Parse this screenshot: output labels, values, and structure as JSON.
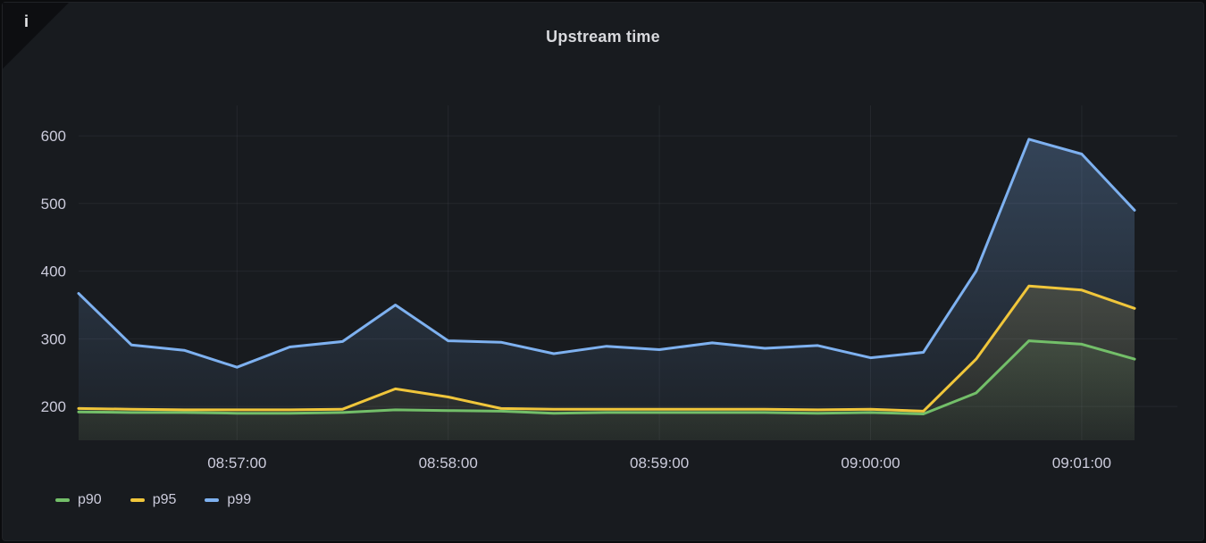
{
  "panel": {
    "info_icon": "i"
  },
  "chart_data": {
    "type": "line",
    "title": "Upstream time",
    "x": [
      "08:56:15",
      "08:56:30",
      "08:56:45",
      "08:57:00",
      "08:57:15",
      "08:57:30",
      "08:57:45",
      "08:58:00",
      "08:58:15",
      "08:58:30",
      "08:58:45",
      "08:59:00",
      "08:59:15",
      "08:59:30",
      "08:59:45",
      "09:00:00",
      "09:00:15",
      "09:00:30",
      "09:00:45",
      "09:01:00",
      "09:01:15"
    ],
    "series": [
      {
        "name": "p90",
        "color": "#73BF69",
        "values": [
          192,
          191,
          191,
          190,
          190,
          191,
          195,
          194,
          193,
          190,
          191,
          191,
          191,
          191,
          190,
          191,
          189,
          220,
          297,
          292,
          270
        ]
      },
      {
        "name": "p95",
        "color": "#F0C63B",
        "values": [
          197,
          196,
          195,
          195,
          195,
          196,
          226,
          214,
          197,
          196,
          196,
          196,
          196,
          196,
          195,
          196,
          193,
          270,
          378,
          372,
          345
        ]
      },
      {
        "name": "p99",
        "color": "#7EB1F0",
        "values": [
          367,
          291,
          283,
          258,
          288,
          296,
          350,
          297,
          295,
          278,
          289,
          284,
          294,
          286,
          290,
          272,
          280,
          400,
          595,
          573,
          490
        ]
      }
    ],
    "yticks": [
      200,
      300,
      400,
      500,
      600
    ],
    "xticks": [
      "08:57:00",
      "08:58:00",
      "08:59:00",
      "09:00:00",
      "09:01:00"
    ],
    "ylim": [
      150,
      645
    ],
    "grid": true,
    "legend_position": "bottom-left",
    "grid_color": "rgba(204,204,220,0.07)",
    "tick_color": "#ccccdc",
    "background": "#181b1f"
  }
}
